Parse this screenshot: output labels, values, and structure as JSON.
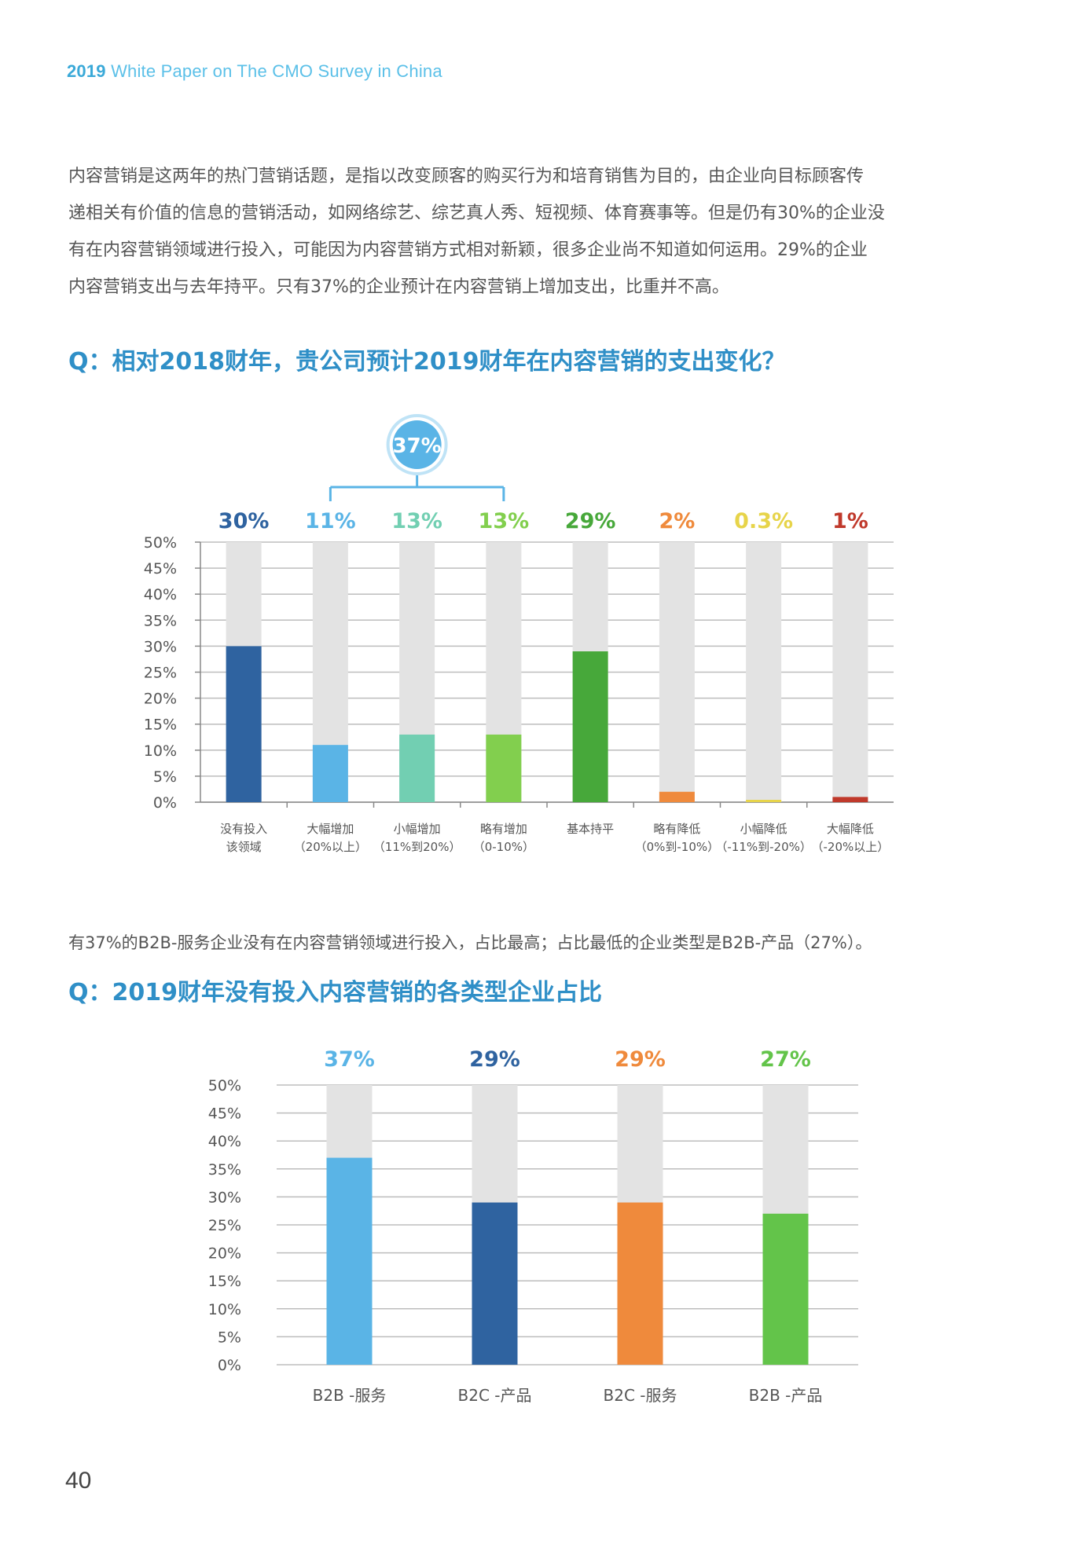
{
  "header": {
    "year": "2019",
    "title": "White Paper on The CMO Survey in China"
  },
  "intro_paragraph": [
    "内容营销是这两年的热门营销话题，是指以改变顾客的购买行为和培育销售为目的，由企业向目标顾客传",
    "递相关有价值的信息的营销活动，如网络综艺、综艺真人秀、短视频、体育赛事等。但是仍有30%的企业没",
    "有在内容营销领域进行投入，可能因为内容营销方式相对新颖，很多企业尚不知道如何运用。29%的企业",
    "内容营销支出与去年持平。只有37%的企业预计在内容营销上增加支出，比重并不高。"
  ],
  "question1": "Q：相对2018财年，贵公司预计2019财年在内容营销的支出变化？",
  "paragraph2": "有37%的B2B-服务企业没有在内容营销领域进行投入，占比最高；占比最低的企业类型是B2B-产品（27%）。",
  "question2": "Q：2019财年没有投入内容营销的各类型企业占比",
  "page_number": "40",
  "chart_data": [
    {
      "type": "bar",
      "title": "",
      "xlabel": "",
      "ylabel": "",
      "ylim": [
        0,
        50
      ],
      "y_ticks": [
        "0%",
        "5%",
        "10%",
        "15%",
        "20%",
        "25%",
        "30%",
        "35%",
        "40%",
        "45%",
        "50%"
      ],
      "grid": true,
      "background_bar_max": 50,
      "group_annotation": {
        "label": "37%",
        "spans_categories": [
          1,
          3
        ],
        "color": "#5ab4e6"
      },
      "categories": [
        [
          "没有投入",
          "该领域"
        ],
        [
          "大幅增加",
          "（20%以上）"
        ],
        [
          "小幅增加",
          "（11%到20%）"
        ],
        [
          "略有增加",
          "（0-10%）"
        ],
        [
          "基本持平",
          ""
        ],
        [
          "略有降低",
          "（0%到-10%）"
        ],
        [
          "小幅降低",
          "（-11%到-20%）"
        ],
        [
          "大幅降低",
          "（-20%以上）"
        ]
      ],
      "values": [
        30,
        11,
        13,
        13,
        29,
        2,
        0.3,
        1
      ],
      "value_labels": [
        "30%",
        "11%",
        "13%",
        "13%",
        "29%",
        "2%",
        "0.3%",
        "1%"
      ],
      "colors": [
        "#2f63a0",
        "#5ab4e6",
        "#72cfb2",
        "#82cf4e",
        "#47a83a",
        "#ef8a3c",
        "#e7d44a",
        "#c0392b"
      ]
    },
    {
      "type": "bar",
      "title": "",
      "xlabel": "",
      "ylabel": "",
      "ylim": [
        0,
        50
      ],
      "y_ticks": [
        "0%",
        "5%",
        "10%",
        "15%",
        "20%",
        "25%",
        "30%",
        "35%",
        "40%",
        "45%",
        "50%"
      ],
      "grid": true,
      "background_bar_max": 50,
      "categories": [
        "B2B -服务",
        "B2C -产品",
        "B2C -服务",
        "B2B -产品"
      ],
      "values": [
        37,
        29,
        29,
        27
      ],
      "value_labels": [
        "37%",
        "29%",
        "29%",
        "27%"
      ],
      "colors": [
        "#5ab4e6",
        "#2f63a0",
        "#ef8a3c",
        "#63c44a"
      ]
    }
  ]
}
